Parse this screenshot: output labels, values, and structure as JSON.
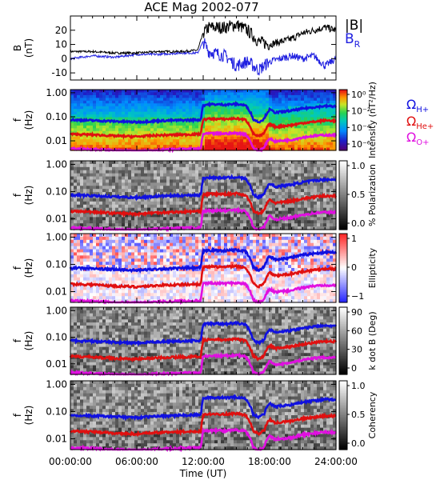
{
  "title": "ACE Mag 2002-077",
  "xaxis": {
    "label": "Time (UT)",
    "ticks": [
      "00:00:00",
      "06:00:00",
      "12:00:00",
      "18:00:00",
      "24:00:00"
    ],
    "range_hours": [
      0,
      24
    ]
  },
  "legend_b": [
    {
      "label": "|B|",
      "color": "#000000"
    },
    {
      "label": "B",
      "sub": "R",
      "color": "#2020e0"
    }
  ],
  "legend_gyro": [
    {
      "label": "Ω",
      "sub": "H+",
      "color": "#1010e0"
    },
    {
      "label": "Ω",
      "sub": "He+",
      "color": "#e01010"
    },
    {
      "label": "Ω",
      "sub": "O+",
      "color": "#e010e0"
    }
  ],
  "colors": {
    "mag_total": "#000000",
    "mag_radial": "#2020e0",
    "gyro_h": "#1010e0",
    "gyro_he": "#e01010",
    "gyro_o": "#e010e0"
  },
  "chart_data": [
    {
      "type": "line",
      "ylabel": [
        "B",
        "(nT)"
      ],
      "ylim": [
        -15,
        30
      ],
      "yticks": [
        "-10",
        "0",
        "10",
        "20"
      ],
      "x_hours": [
        0,
        2,
        4,
        6,
        8,
        10,
        11.5,
        12,
        12.5,
        14,
        15,
        16,
        17,
        18,
        19,
        20,
        21,
        22,
        23,
        24
      ],
      "series": [
        {
          "name": "|B|",
          "values": [
            5,
            5,
            4,
            4,
            5,
            5,
            6,
            18,
            22,
            22,
            24,
            20,
            12,
            10,
            12,
            14,
            18,
            20,
            22,
            20
          ]
        },
        {
          "name": "B_R",
          "values": [
            0,
            2,
            1,
            3,
            3,
            4,
            4,
            12,
            5,
            2,
            -5,
            -2,
            -8,
            -2,
            0,
            2,
            0,
            2,
            -5,
            0
          ]
        }
      ]
    },
    {
      "type": "heatmap",
      "ylabel": [
        "f",
        "(Hz)"
      ],
      "yticks": [
        "1.00",
        "0.10",
        "0.01"
      ],
      "colorbar": {
        "label": "Intensity (nT²/Hz)",
        "ticks": [
          "10⁰",
          "10⁻²",
          "10⁻⁴",
          "10⁻⁶"
        ]
      }
    },
    {
      "type": "heatmap",
      "ylabel": [
        "f",
        "(Hz)"
      ],
      "yticks": [
        "1.00",
        "0.10",
        "0.01"
      ],
      "colorbar": {
        "label": "% Polarization",
        "ticks": [
          "1.0",
          "0.5",
          "0.0"
        ]
      }
    },
    {
      "type": "heatmap",
      "ylabel": [
        "f",
        "(Hz)"
      ],
      "yticks": [
        "1.00",
        "0.10",
        "0.01"
      ],
      "colorbar": {
        "label": "Ellipticity",
        "ticks": [
          "1",
          "0",
          "−1"
        ]
      }
    },
    {
      "type": "heatmap",
      "ylabel": [
        "f",
        "(Hz)"
      ],
      "yticks": [
        "1.00",
        "0.10",
        "0.01"
      ],
      "colorbar": {
        "label": "k dot B (Deg)",
        "ticks": [
          "90",
          "60",
          "30",
          "0"
        ]
      }
    },
    {
      "type": "heatmap",
      "ylabel": [
        "f",
        "(Hz)"
      ],
      "yticks": [
        "1.00",
        "0.10",
        "0.01"
      ],
      "colorbar": {
        "label": "Coherency",
        "ticks": [
          "1.0",
          "0.5",
          "0.0"
        ]
      }
    }
  ],
  "gyrofrequency_lines": {
    "x_hours": [
      0,
      2,
      4,
      6,
      8,
      10,
      11.8,
      12,
      12.5,
      14,
      15,
      15.8,
      16.5,
      17,
      17.5,
      18,
      18.5,
      19,
      20,
      21,
      22,
      23,
      24
    ],
    "H+": [
      0.075,
      0.07,
      0.065,
      0.06,
      0.068,
      0.072,
      0.075,
      0.3,
      0.33,
      0.32,
      0.34,
      0.3,
      0.08,
      0.06,
      0.08,
      0.2,
      0.15,
      0.16,
      0.18,
      0.22,
      0.25,
      0.28,
      0.27
    ],
    "He+": [
      0.019,
      0.018,
      0.016,
      0.015,
      0.017,
      0.018,
      0.019,
      0.075,
      0.082,
      0.08,
      0.085,
      0.075,
      0.02,
      0.015,
      0.02,
      0.05,
      0.038,
      0.04,
      0.045,
      0.055,
      0.062,
      0.07,
      0.068
    ],
    "O+": [
      0.0047,
      0.0044,
      0.004,
      0.0038,
      0.0042,
      0.0045,
      0.0047,
      0.019,
      0.02,
      0.02,
      0.021,
      0.019,
      0.005,
      0.0038,
      0.005,
      0.0125,
      0.0095,
      0.01,
      0.011,
      0.014,
      0.016,
      0.0175,
      0.017
    ]
  }
}
